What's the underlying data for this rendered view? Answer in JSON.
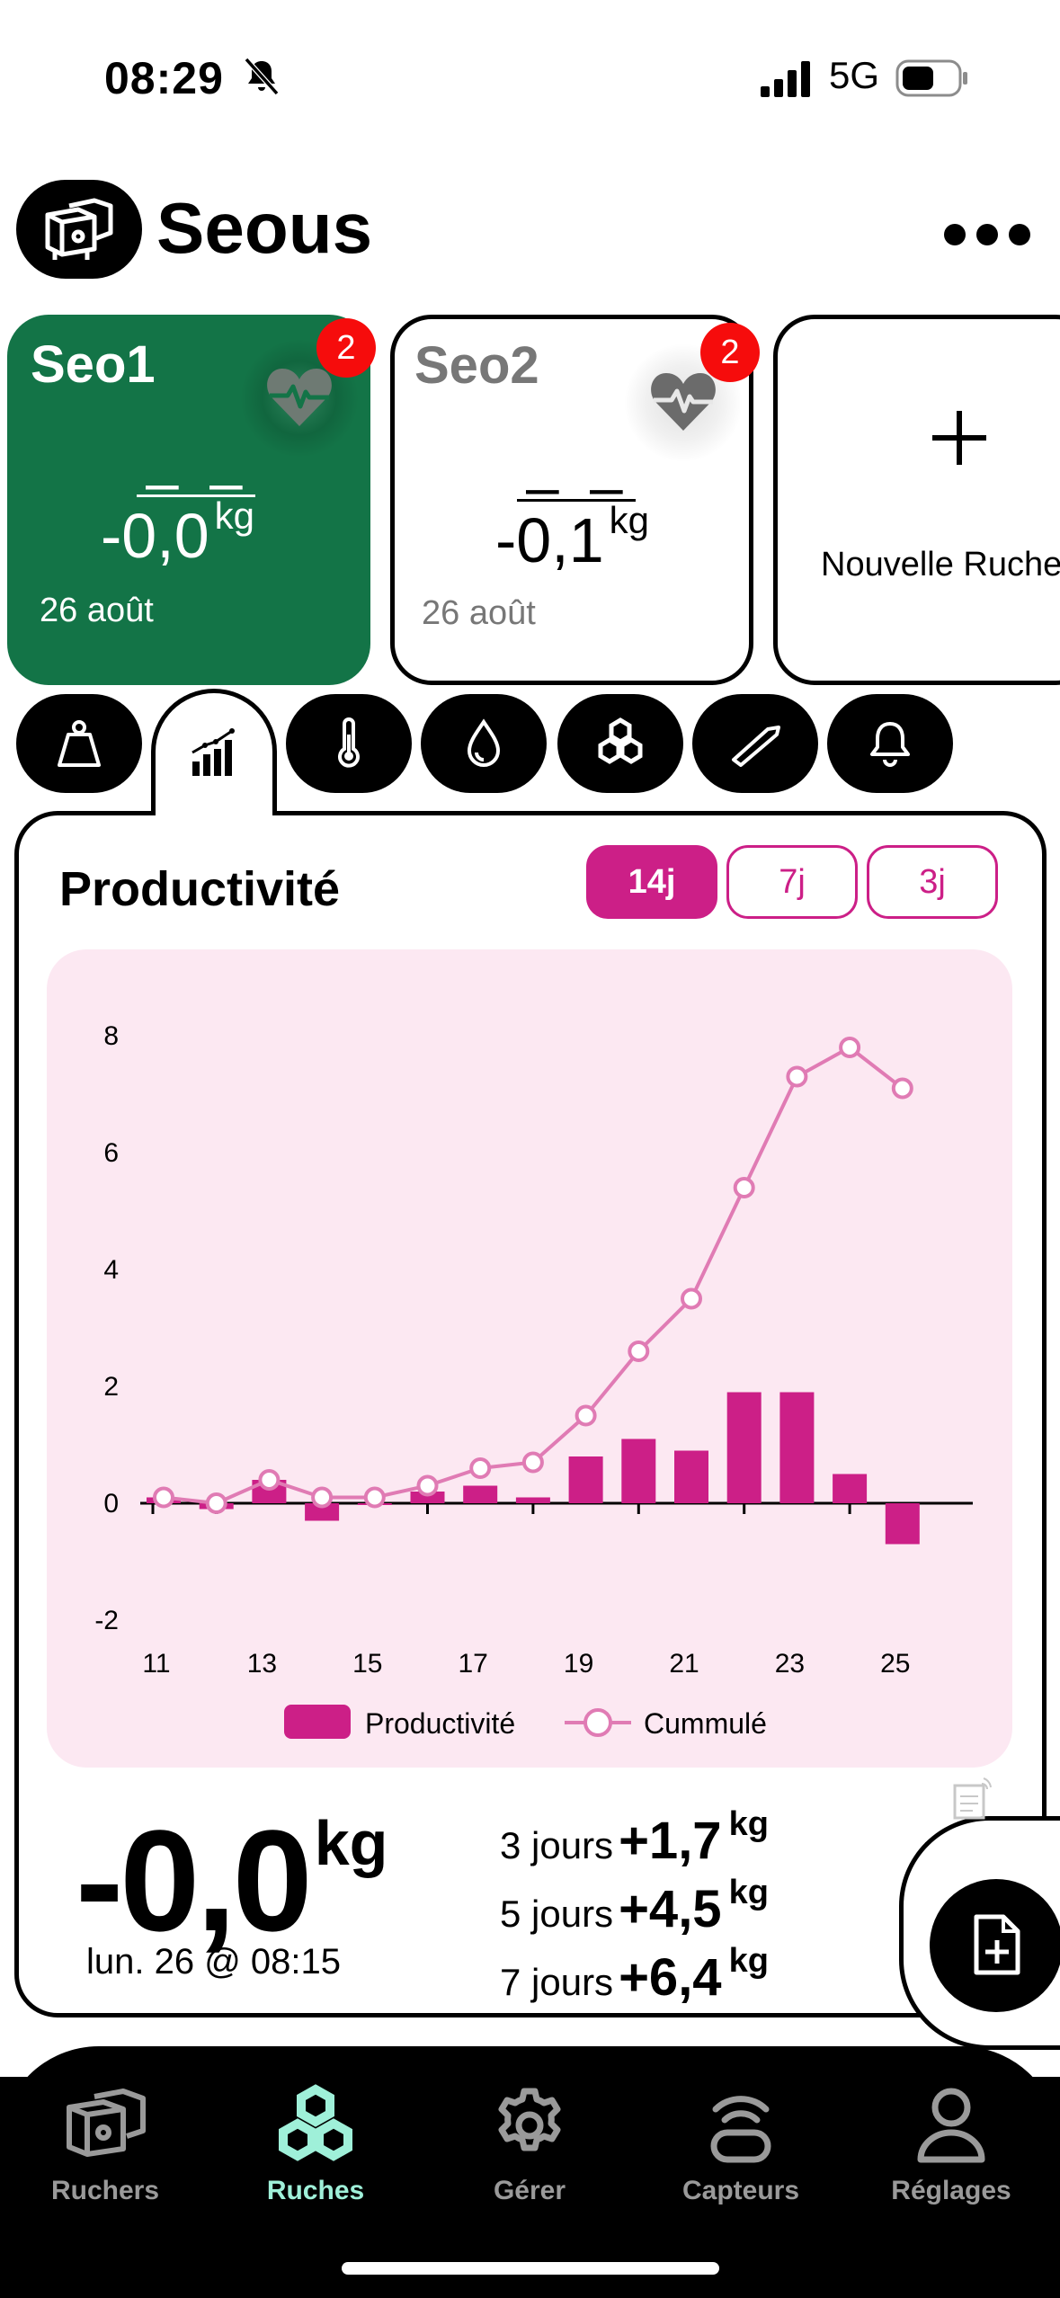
{
  "status_bar": {
    "time": "08:29",
    "network": "5G"
  },
  "header": {
    "title": "Seous",
    "logo_icon": "apiary-icon",
    "menu_icon": "more-icon"
  },
  "hives": [
    {
      "name": "Seo1",
      "dash": "– –",
      "weight": "-0,0",
      "unit": "kg",
      "date": "26 août",
      "badge": "2",
      "color": "#137447"
    },
    {
      "name": "Seo2",
      "dash": "– –",
      "weight": "-0,1",
      "unit": "kg",
      "date": "26 août",
      "badge": "2"
    }
  ],
  "new_hive": {
    "label": "Nouvelle Ruche"
  },
  "tabs": [
    {
      "icon": "weight-icon"
    },
    {
      "icon": "productivity-chart-icon",
      "active": true
    },
    {
      "icon": "thermometer-icon"
    },
    {
      "icon": "humidity-icon"
    },
    {
      "icon": "honeycomb-icon"
    },
    {
      "icon": "hive-tool-icon"
    },
    {
      "icon": "bell-icon"
    }
  ],
  "panel": {
    "title": "Productivité",
    "ranges": [
      {
        "label": "14j",
        "active": true
      },
      {
        "label": "7j"
      },
      {
        "label": "3j"
      }
    ],
    "accent": "#cc1f87"
  },
  "chart_data": {
    "type": "bar",
    "x": [
      11,
      12,
      13,
      14,
      15,
      16,
      17,
      18,
      19,
      20,
      21,
      22,
      23,
      24,
      25
    ],
    "x_ticks": [
      "11",
      "13",
      "15",
      "17",
      "19",
      "21",
      "23",
      "25"
    ],
    "y_ticks": [
      "8",
      "6",
      "4",
      "2",
      "0",
      "-2"
    ],
    "ylim": [
      -2,
      8
    ],
    "series": [
      {
        "name": "Productivité",
        "type": "bar",
        "values": [
          0.1,
          -0.1,
          0.4,
          -0.3,
          0.0,
          0.2,
          0.3,
          0.1,
          0.8,
          1.1,
          0.9,
          1.9,
          1.9,
          0.5,
          -0.7
        ]
      },
      {
        "name": "Cummulé",
        "type": "line",
        "values": [
          0.1,
          0.0,
          0.4,
          0.1,
          0.1,
          0.3,
          0.6,
          0.7,
          1.5,
          2.6,
          3.5,
          5.4,
          7.3,
          7.8,
          7.1
        ]
      }
    ],
    "legend": "bottom",
    "grid": false
  },
  "summary": {
    "weight": "-0,0",
    "unit": "kg",
    "date": "lun. 26 @ 08:15",
    "stats": [
      {
        "label": "3 jours",
        "value": "+1,7",
        "unit": "kg"
      },
      {
        "label": "5 jours",
        "value": "+4,5",
        "unit": "kg"
      },
      {
        "label": "7 jours",
        "value": "+6,4",
        "unit": "kg"
      }
    ]
  },
  "nav": [
    {
      "label": "Ruchers",
      "icon": "apiary-icon"
    },
    {
      "label": "Ruches",
      "icon": "honeycomb-icon",
      "active": true
    },
    {
      "label": "Gérer",
      "icon": "gear-icon"
    },
    {
      "label": "Capteurs",
      "icon": "sensor-icon"
    },
    {
      "label": "Réglages",
      "icon": "user-icon"
    }
  ]
}
